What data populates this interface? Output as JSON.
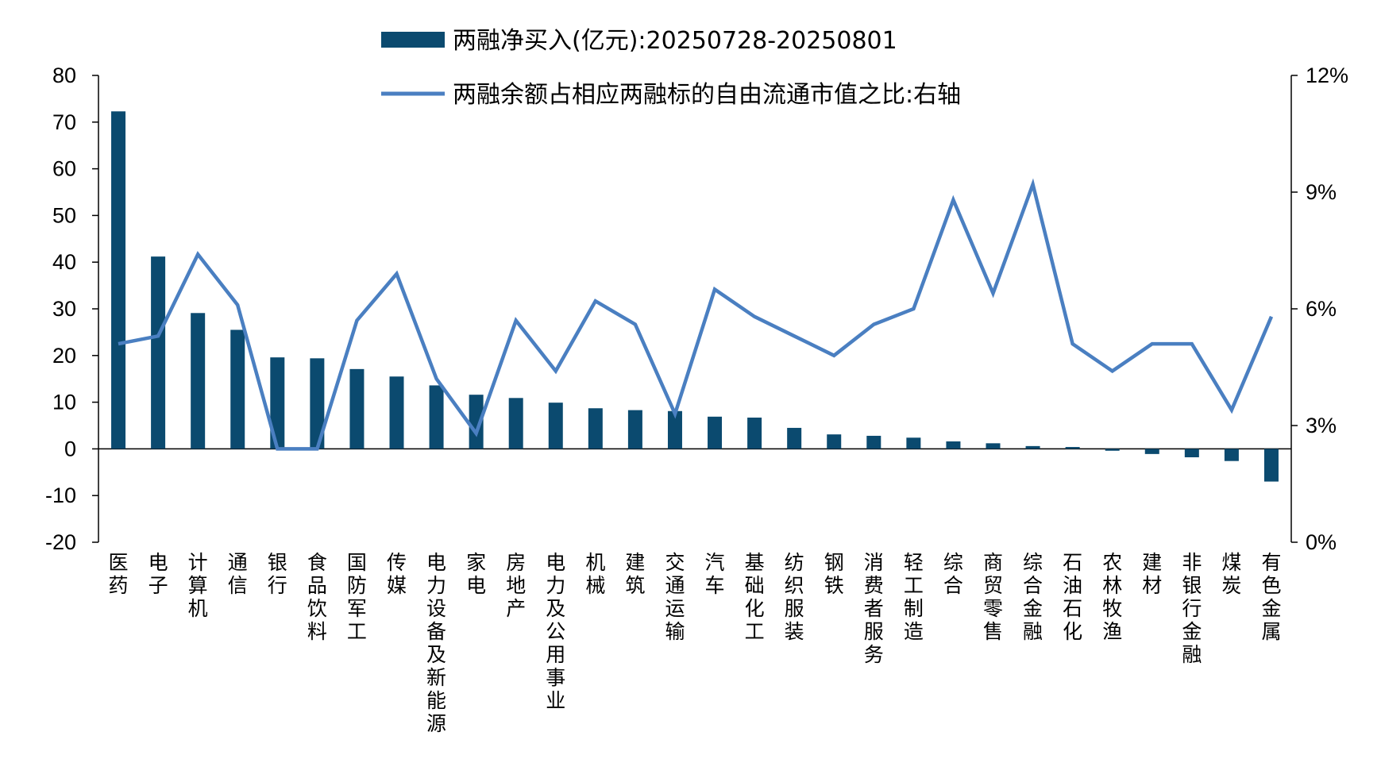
{
  "chart_data": {
    "type": "bar",
    "categories": [
      "医药",
      "电子",
      "计算机",
      "通信",
      "银行",
      "食品饮料",
      "国防军工",
      "传媒",
      "电力设备及新能源",
      "家电",
      "房地产",
      "电力及公用事业",
      "机械",
      "建筑",
      "交通运输",
      "汽车",
      "基础化工",
      "纺织服装",
      "钢铁",
      "消费者服务",
      "轻工制造",
      "综合",
      "商贸零售",
      "综合金融",
      "石油石化",
      "农林牧渔",
      "建材",
      "非银行金融",
      "煤炭",
      "有色金属"
    ],
    "series": [
      {
        "name": "两融净买入(亿元):20250728-20250801",
        "type": "bar",
        "axis": "left",
        "color": "#0b4a6f",
        "values": [
          72.3,
          41.2,
          29.1,
          25.5,
          19.6,
          19.4,
          17.1,
          15.5,
          13.6,
          11.6,
          10.9,
          9.9,
          8.7,
          8.3,
          8.1,
          6.9,
          6.7,
          4.5,
          3.1,
          2.8,
          2.4,
          1.6,
          1.2,
          0.6,
          0.4,
          -0.4,
          -1.1,
          -1.8,
          -2.6,
          -7.0
        ]
      },
      {
        "name": "两融余额占相应两融标的自由流通市值之比:右轴",
        "type": "line",
        "axis": "right",
        "color": "#4a7fc1",
        "values": [
          5.1,
          5.3,
          7.4,
          6.1,
          2.4,
          2.4,
          5.7,
          6.9,
          4.2,
          2.8,
          5.7,
          4.4,
          6.2,
          5.6,
          3.3,
          6.5,
          5.8,
          5.3,
          4.8,
          5.6,
          6.0,
          8.8,
          6.4,
          9.2,
          5.1,
          4.4,
          5.1,
          5.1,
          3.4,
          5.8
        ]
      }
    ],
    "yleft": {
      "min": -20,
      "max": 80,
      "step": 10,
      "ticks": [
        "-20",
        "-10",
        "0",
        "10",
        "20",
        "30",
        "40",
        "50",
        "60",
        "70",
        "80"
      ]
    },
    "yright": {
      "min": 0,
      "max": 12,
      "step": 3,
      "ticks": [
        "0%",
        "3%",
        "6%",
        "9%",
        "12%"
      ]
    },
    "legend": "top-center",
    "grid": false
  }
}
